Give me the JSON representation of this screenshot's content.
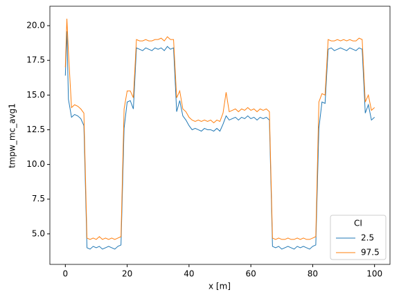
{
  "chart_data": {
    "type": "line",
    "xlabel": "x [m]",
    "ylabel": "tmpw_mc_avg1",
    "xlim": [
      -5,
      105
    ],
    "ylim": [
      2.8,
      21.4
    ],
    "xticks": [
      0,
      20,
      40,
      60,
      80,
      100
    ],
    "yticks": [
      {
        "value": 5,
        "label": "5.0"
      },
      7.5,
      {
        "value": 10,
        "label": "10.0"
      },
      12.5,
      {
        "value": 15,
        "label": "15.0"
      },
      17.5,
      {
        "value": 20,
        "label": "20.0"
      }
    ],
    "grid": false,
    "legend_title": "CI",
    "legend_loc": "lower right",
    "x": [
      0,
      0.5,
      1,
      2,
      3,
      4,
      5,
      6,
      7,
      8,
      9,
      10,
      11,
      12,
      13,
      14,
      15,
      16,
      17,
      18,
      19,
      20,
      21,
      22,
      23,
      24,
      25,
      26,
      27,
      28,
      29,
      30,
      31,
      32,
      33,
      34,
      35,
      36,
      37,
      38,
      39,
      40,
      41,
      42,
      43,
      44,
      45,
      46,
      47,
      48,
      49,
      50,
      51,
      52,
      53,
      54,
      55,
      56,
      57,
      58,
      59,
      60,
      61,
      62,
      63,
      64,
      65,
      66,
      67,
      68,
      69,
      70,
      71,
      72,
      73,
      74,
      75,
      76,
      77,
      78,
      79,
      80,
      81,
      82,
      83,
      84,
      85,
      86,
      87,
      88,
      89,
      90,
      91,
      92,
      93,
      94,
      95,
      96,
      97,
      98,
      99,
      100
    ],
    "series": [
      {
        "name": "2.5",
        "color": "#1f77b4",
        "values": [
          16.4,
          19.6,
          14.7,
          13.4,
          13.6,
          13.5,
          13.3,
          12.8,
          4.0,
          3.9,
          4.1,
          4.0,
          4.1,
          3.9,
          4.0,
          4.1,
          4.0,
          3.9,
          4.1,
          4.2,
          12.6,
          14.5,
          14.6,
          14.0,
          18.4,
          18.3,
          18.2,
          18.4,
          18.3,
          18.2,
          18.4,
          18.3,
          18.4,
          18.2,
          18.5,
          18.3,
          18.4,
          13.8,
          14.6,
          13.5,
          13.2,
          12.8,
          12.5,
          12.6,
          12.5,
          12.4,
          12.6,
          12.5,
          12.5,
          12.4,
          12.6,
          12.4,
          12.9,
          13.5,
          13.2,
          13.3,
          13.4,
          13.2,
          13.4,
          13.3,
          13.5,
          13.3,
          13.4,
          13.2,
          13.4,
          13.3,
          13.4,
          13.2,
          4.1,
          4.0,
          4.1,
          3.9,
          4.0,
          4.1,
          4.0,
          3.9,
          4.1,
          4.0,
          4.1,
          4.0,
          3.9,
          4.1,
          4.2,
          12.6,
          14.5,
          14.4,
          18.3,
          18.4,
          18.2,
          18.3,
          18.4,
          18.3,
          18.2,
          18.4,
          18.3,
          18.2,
          18.4,
          18.3,
          13.7,
          14.3,
          13.2,
          13.4
        ]
      },
      {
        "name": "97.5",
        "color": "#ff7f0e",
        "values": [
          17.0,
          20.5,
          18.1,
          14.1,
          14.3,
          14.2,
          14.0,
          13.7,
          4.7,
          4.6,
          4.7,
          4.6,
          4.8,
          4.6,
          4.7,
          4.6,
          4.7,
          4.6,
          4.7,
          4.8,
          14.0,
          15.3,
          15.3,
          14.8,
          19.0,
          18.9,
          18.9,
          19.0,
          18.9,
          18.9,
          19.0,
          19.0,
          19.1,
          18.9,
          19.2,
          19.0,
          19.0,
          14.8,
          15.3,
          14.0,
          13.8,
          13.4,
          13.2,
          13.1,
          13.2,
          13.1,
          13.2,
          13.1,
          13.2,
          13.0,
          13.2,
          13.1,
          13.7,
          15.2,
          13.8,
          13.9,
          14.0,
          13.8,
          14.0,
          13.9,
          14.1,
          13.9,
          14.0,
          13.8,
          14.0,
          13.9,
          14.0,
          13.8,
          4.7,
          4.6,
          4.7,
          4.6,
          4.6,
          4.7,
          4.6,
          4.6,
          4.7,
          4.6,
          4.7,
          4.6,
          4.6,
          4.7,
          4.8,
          14.5,
          15.1,
          15.0,
          19.0,
          18.9,
          18.9,
          19.0,
          18.9,
          19.0,
          18.9,
          19.0,
          18.9,
          18.9,
          19.1,
          19.0,
          14.5,
          15.0,
          13.9,
          14.1
        ]
      }
    ]
  }
}
